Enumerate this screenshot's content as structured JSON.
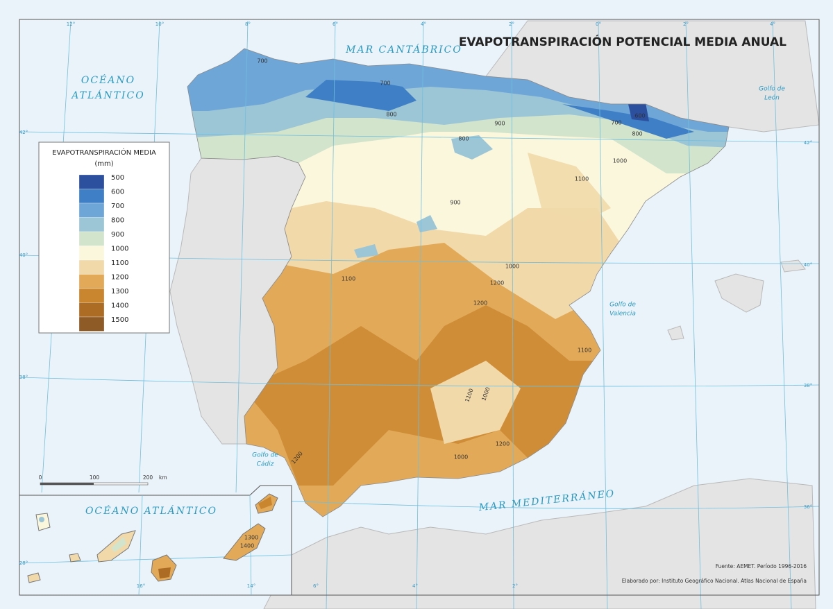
{
  "title": "EVAPOTRANSPIRACIÓN POTENCIAL MEDIA ANUAL",
  "labels": {
    "mar_cantabrico": "MAR CANTÁBRICO",
    "oceano_atlantico": [
      "OCÉANO",
      "ATLÁNTICO"
    ],
    "golfo_leon": [
      "Golfo de",
      "León"
    ],
    "golfo_valencia": [
      "Golfo de",
      "Valencia"
    ],
    "golfo_cadiz": [
      "Golfo de",
      "Cádiz"
    ],
    "mar_mediterraneo": "MAR MEDITERRÁNEO",
    "inset_oceano": "OCÉANO ATLÁNTICO"
  },
  "legend": {
    "title": "EVAPOTRANSPIRACIÓN MEDIA",
    "unit": "(mm)",
    "items": [
      {
        "label": "500",
        "color": "#2c4f9e"
      },
      {
        "label": "600",
        "color": "#3f7fc6"
      },
      {
        "label": "700",
        "color": "#6ea6d8"
      },
      {
        "label": "800",
        "color": "#9cc6d6"
      },
      {
        "label": "900",
        "color": "#d2e4cc"
      },
      {
        "label": "1000",
        "color": "#fbf7dc"
      },
      {
        "label": "1100",
        "color": "#f1d9aa"
      },
      {
        "label": "1200",
        "color": "#e2aa58"
      },
      {
        "label": "1300",
        "color": "#c9862e"
      },
      {
        "label": "1400",
        "color": "#ad6c24"
      },
      {
        "label": "1500",
        "color": "#8e5a26"
      }
    ]
  },
  "scale": {
    "labels": [
      "0",
      "100",
      "200"
    ],
    "unit": "km"
  },
  "graticule": {
    "top": [
      "12°",
      "10°",
      "8°",
      "6°",
      "4°",
      "2°",
      "0°",
      "2°",
      "4°"
    ],
    "left": [
      "42°",
      "40°",
      "38°"
    ],
    "right": [
      "42°",
      "40°",
      "38°",
      "36°"
    ],
    "bottom": [
      "6°",
      "4°",
      "2°"
    ],
    "inset_left": [
      "28°"
    ],
    "inset_bottom": [
      "16°",
      "14°"
    ]
  },
  "contours": [
    "700",
    "700",
    "600",
    "700",
    "800",
    "800",
    "900",
    "800",
    "1000",
    "1100",
    "900",
    "1000",
    "1100",
    "1200",
    "1200",
    "1100",
    "1100",
    "1000",
    "1200",
    "1000",
    "1200",
    "1300",
    "1400"
  ],
  "source": "Fuente: AEMET. Período 1996-2016",
  "credit": "Elaborado por: Instituto Geográfico Nacional. Atlas Nacional de España"
}
